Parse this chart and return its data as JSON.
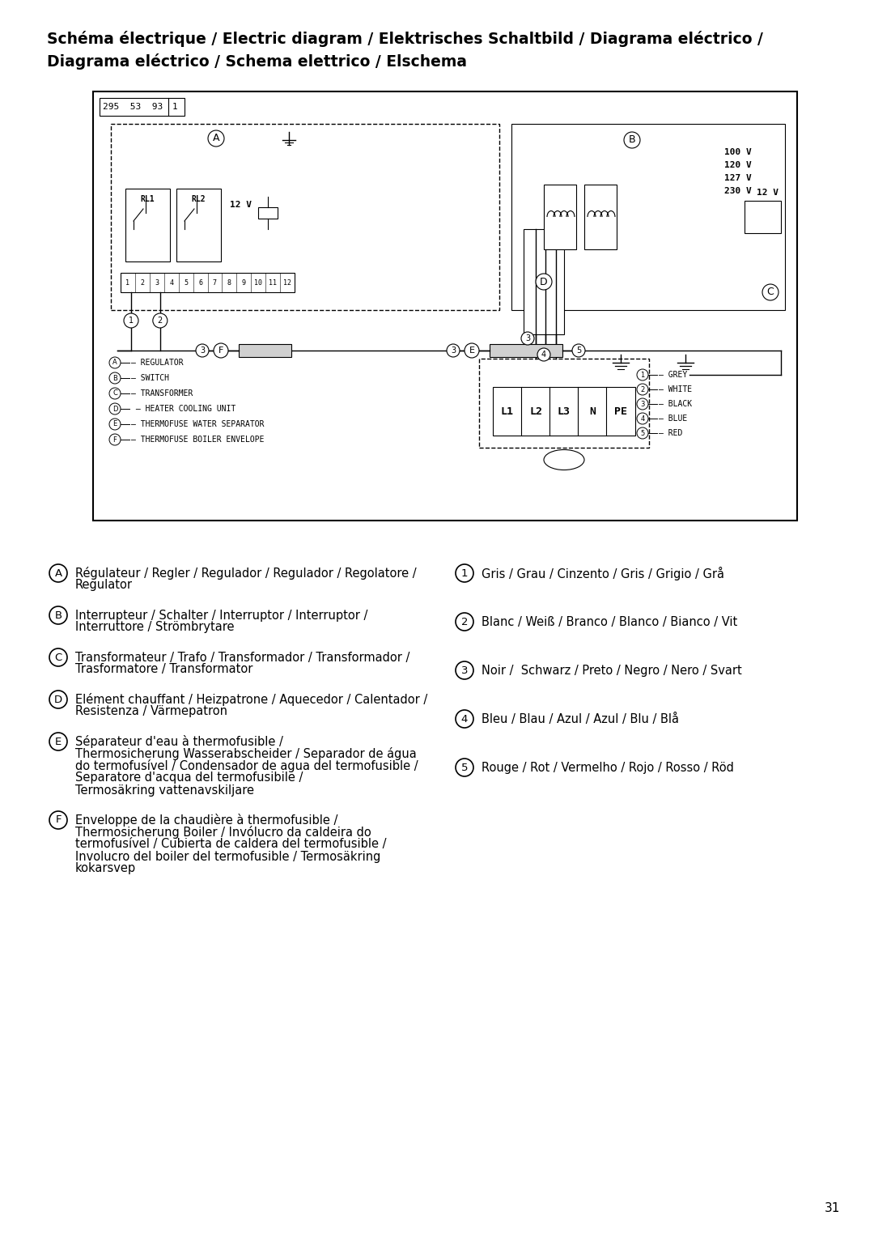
{
  "title_line1": "Schéma électrique / Electric diagram / Elektrisches Schaltbild / Diagrama eléctrico /",
  "title_line2": "Diagrama eléctrico / Schema elettrico / Elschema",
  "title_fontsize": 13.5,
  "page_number": "31",
  "bg_color": "#ffffff",
  "legend_left": [
    [
      "A",
      "Régulateur / Regler / Regulador / Regulador / Regolatore /\nRegulator"
    ],
    [
      "B",
      "Interrupteur / Schalter / Interruptor / Interruptor /\nInterruttore / Strömbrytare"
    ],
    [
      "C",
      "Transformateur / Trafo / Transformador / Transformador /\nTrasformatore / Transformator"
    ],
    [
      "D",
      "Elément chauffant / Heizpatrone / Aquecedor / Calentador /\nResistenza / Värmepatron"
    ],
    [
      "E",
      "Séparateur d'eau à thermofusible /\nThermosicherung Wasserabscheider / Separador de água\ndo termofusível / Condensador de agua del termofusible /\nSeparatore d'acqua del termofusibile /\nTermosäkring vattenavskiljare"
    ],
    [
      "F",
      "Enveloppe de la chaudière à thermofusible /\nThermosicherung Boiler / Invólucro da caldeira do\ntermofusível / Cubierta de caldera del termofusible /\nInvolucro del boiler del termofusible / Termosäkring\nkokarsvep"
    ]
  ],
  "legend_right": [
    [
      "1",
      "Gris / Grau / Cinzento / Gris / Grigio / Grå"
    ],
    [
      "2",
      "Blanc / Weiß / Branco / Blanco / Bianco / Vit"
    ],
    [
      "3",
      "Noir /  Schwarz / Preto / Negro / Nero / Svart"
    ],
    [
      "4",
      "Bleu / Blau / Azul / Azul / Blu / Blå"
    ],
    [
      "5",
      "Rouge / Rot / Vermelho / Rojo / Rosso / Röd"
    ]
  ],
  "legend_fontsize": 10.5,
  "diagram_label": "295  53  93",
  "connector_labels": [
    "L1",
    "L2",
    "L3",
    "N",
    "PE"
  ],
  "voltage_labels": [
    "100 V",
    "120 V",
    "127 V",
    "230 V"
  ],
  "pin_numbers": [
    "1",
    "2",
    "3",
    "4",
    "5",
    "6",
    "7",
    "8",
    "9",
    "10",
    "11",
    "12"
  ],
  "diagram_legend_left": [
    [
      "A",
      "REGULATOR"
    ],
    [
      "B",
      "SWITCH"
    ],
    [
      "C",
      "TRANSFORMER"
    ],
    [
      "D",
      "HEATER COOLING UNIT"
    ],
    [
      "E",
      "THERMOFUSE WATER SEPARATOR"
    ],
    [
      "F",
      "THERMOFUSE BOILER ENVELOPE"
    ]
  ],
  "diagram_legend_right": [
    [
      "1",
      "GREY"
    ],
    [
      "2",
      "WHITE"
    ],
    [
      "3",
      "BLACK"
    ],
    [
      "4",
      "BLUE"
    ],
    [
      "5",
      "RED"
    ]
  ]
}
